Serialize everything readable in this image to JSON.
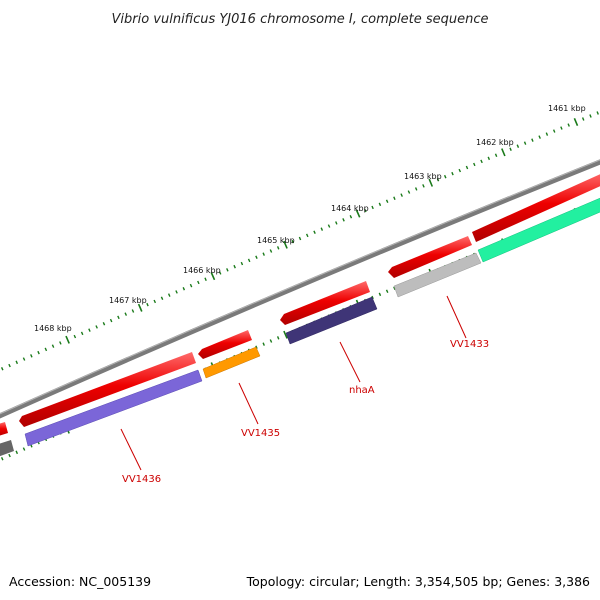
{
  "title": "Vibrio vulnificus YJ016 chromosome I, complete sequence",
  "footer": {
    "accession": "Accession: NC_005139",
    "topology": "Topology: circular; Length: 3,354,505 bp; Genes: 3,386"
  },
  "ticks": [
    "1461 kbp",
    "1462 kbp",
    "1463 kbp",
    "1464 kbp",
    "1465 kbp",
    "1466 kbp",
    "1467 kbp",
    "1468 kbp"
  ],
  "gene_labels": [
    "VV1433",
    "nhaA",
    "VV1435",
    "VV1436"
  ],
  "colors": {
    "backbone": "#7a7a7a",
    "forward_cds": "#e00000",
    "tick": "#1a7a1a",
    "label": "#cc0000",
    "vv1433": "#bdbdbd",
    "nhaA": "#3f3577",
    "vv1435": "#ff9900",
    "vv1436": "#7b66d8",
    "green_gene": "#22f0a0",
    "gray_gene": "#666666"
  }
}
